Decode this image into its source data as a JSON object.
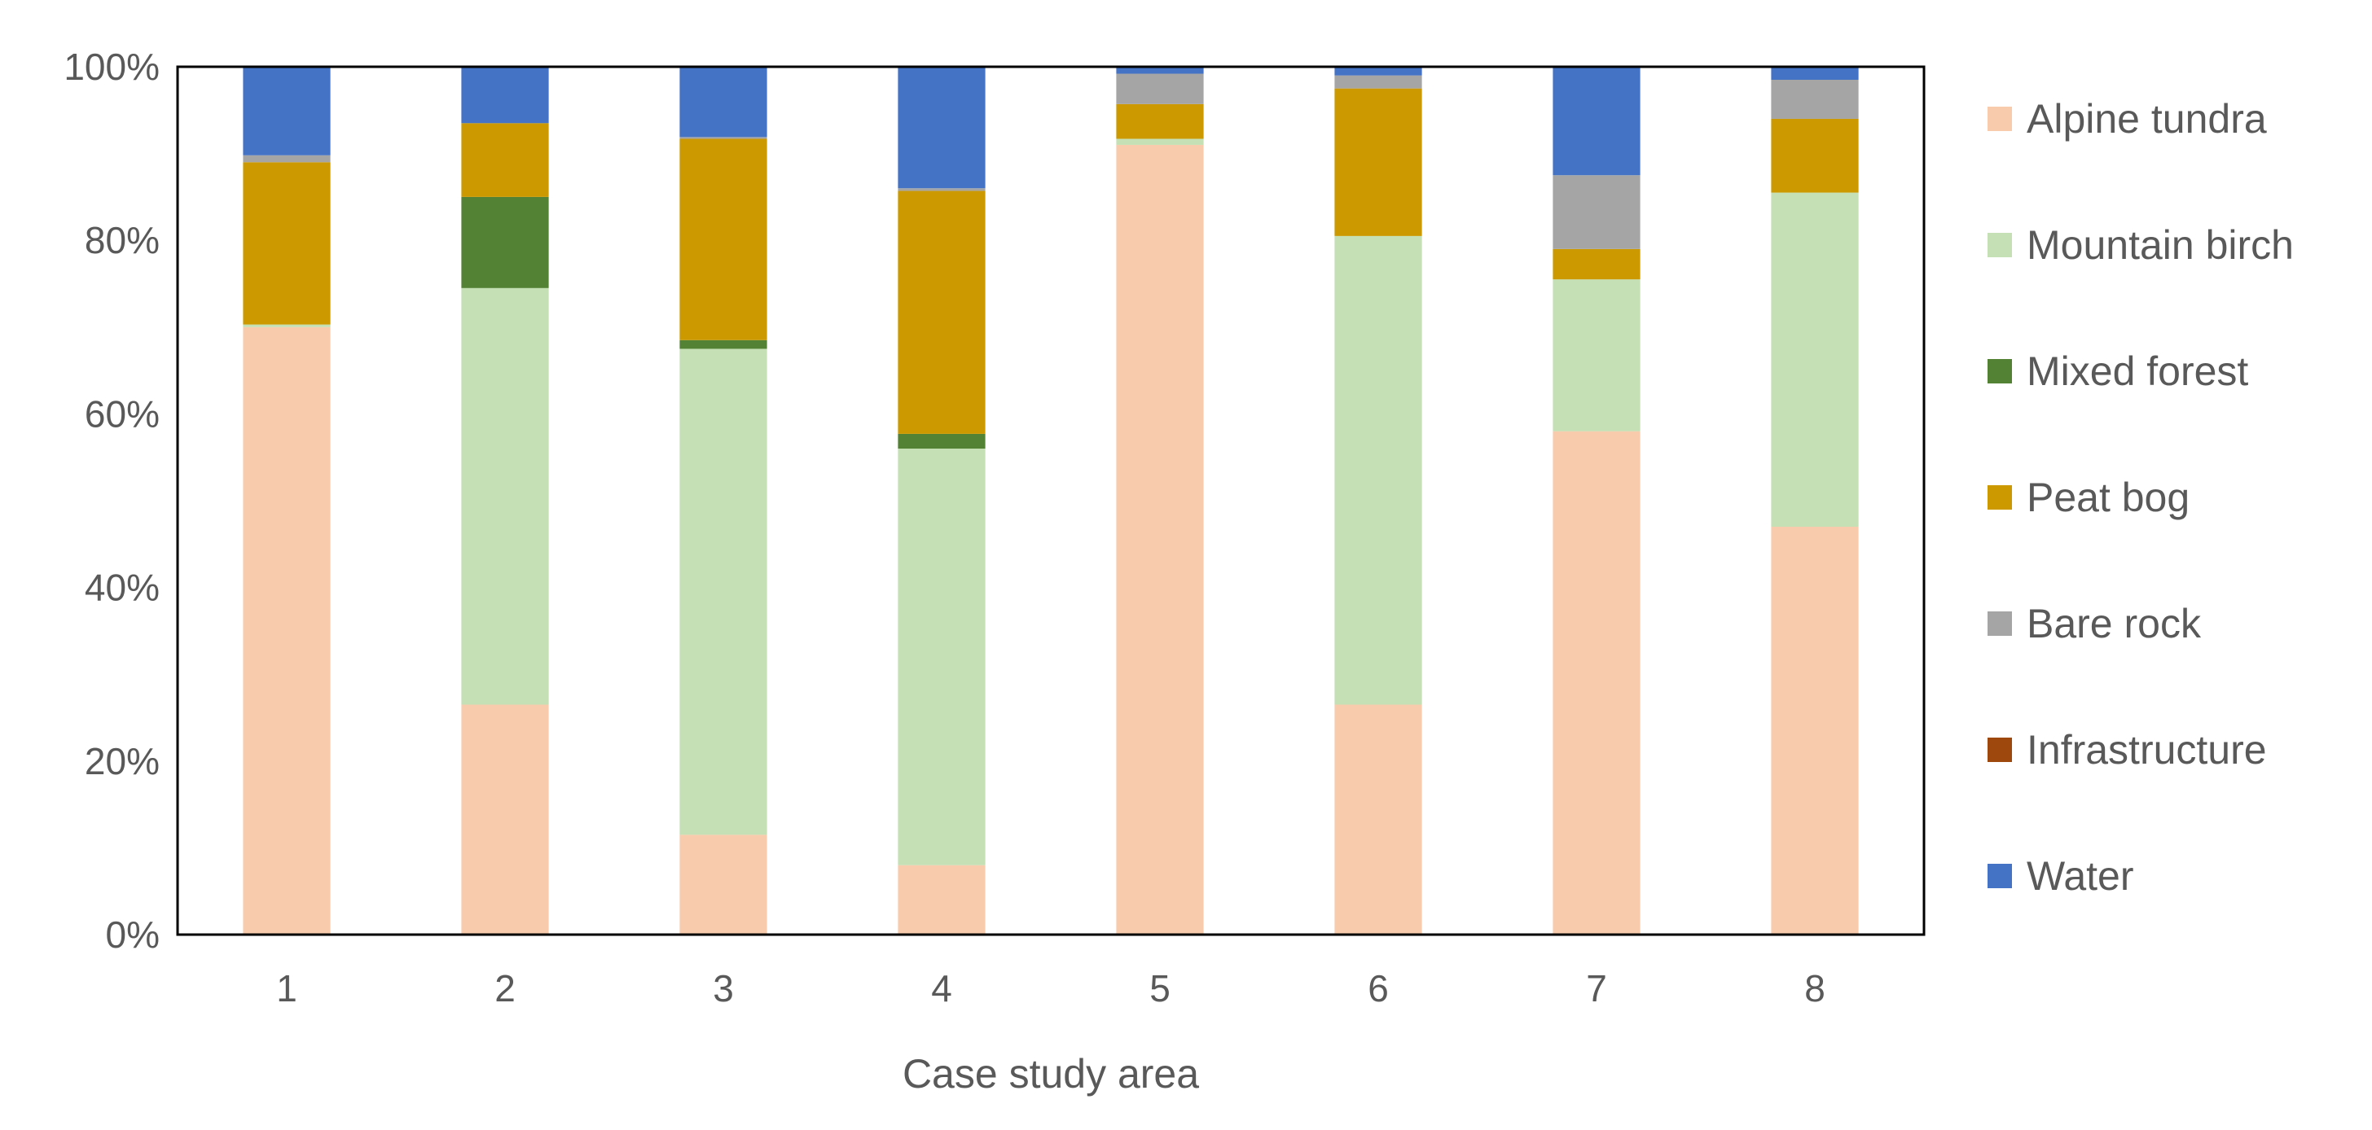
{
  "chart_data": {
    "type": "bar",
    "stacked": true,
    "normalized": true,
    "title": "",
    "xlabel": "Case study area",
    "ylabel": "",
    "ylim": [
      0,
      100
    ],
    "yticks": [
      "0%",
      "20%",
      "40%",
      "60%",
      "80%",
      "100%"
    ],
    "categories": [
      "1",
      "2",
      "3",
      "4",
      "5",
      "6",
      "7",
      "8"
    ],
    "legend_position": "right",
    "series": [
      {
        "name": "Alpine tundra",
        "color": "#F8CBAD",
        "values": [
          70.0,
          26.5,
          11.5,
          8.0,
          91.0,
          26.5,
          58.0,
          47.0
        ]
      },
      {
        "name": "Mountain birch",
        "color": "#C5E0B4",
        "values": [
          0.3,
          48.0,
          56.0,
          48.0,
          0.7,
          54.0,
          17.5,
          38.5
        ]
      },
      {
        "name": "Mixed forest",
        "color": "#548235",
        "values": [
          0.0,
          10.5,
          1.0,
          1.7,
          0.0,
          0.0,
          0.0,
          0.0
        ]
      },
      {
        "name": "Peat bog",
        "color": "#CC9900",
        "values": [
          18.7,
          8.5,
          23.2,
          28.0,
          4.0,
          17.0,
          3.5,
          8.5
        ]
      },
      {
        "name": "Bare rock",
        "color": "#A5A5A5",
        "values": [
          0.8,
          0.0,
          0.2,
          0.3,
          3.5,
          1.5,
          8.5,
          4.5
        ]
      },
      {
        "name": "Infrastructure",
        "color": "#9E480E",
        "values": [
          0.0,
          0.0,
          0.0,
          0.0,
          0.0,
          0.0,
          0.0,
          0.0
        ]
      },
      {
        "name": "Water",
        "color": "#4472C4",
        "values": [
          10.2,
          6.5,
          8.1,
          14.0,
          0.8,
          1.0,
          12.5,
          1.5
        ]
      }
    ]
  }
}
